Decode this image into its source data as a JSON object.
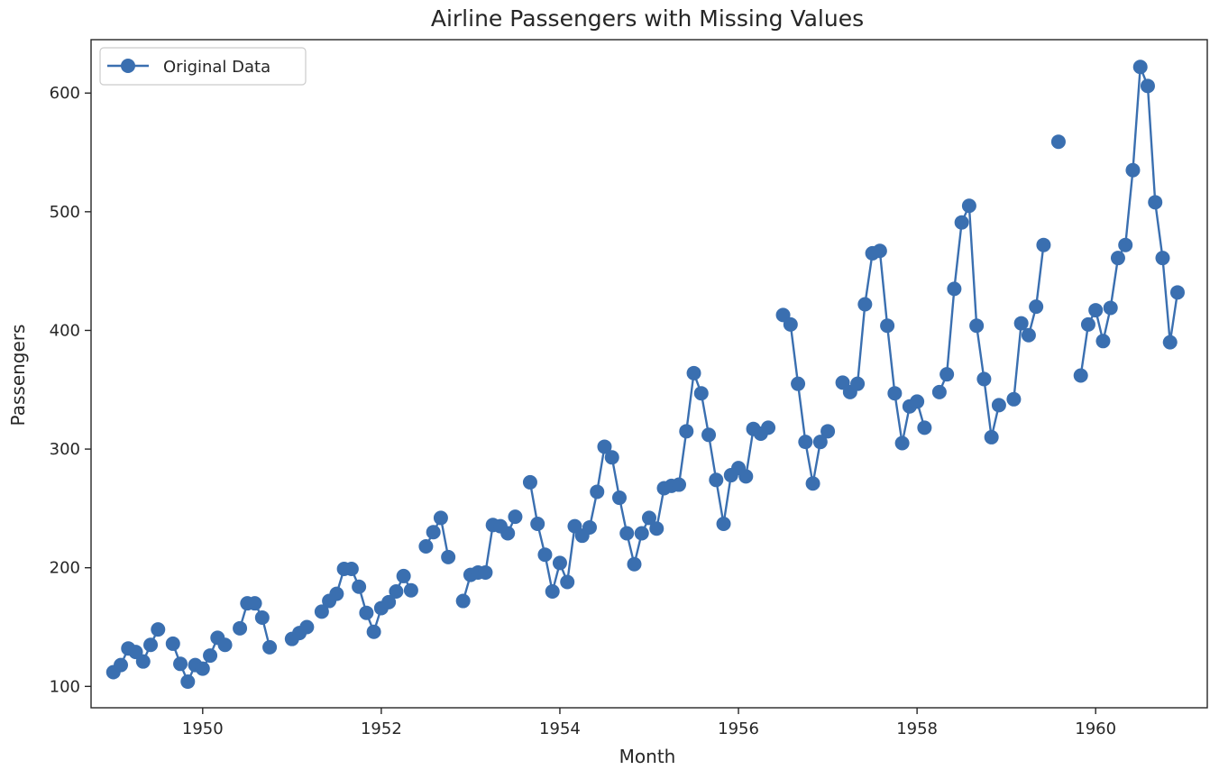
{
  "chart_data": {
    "type": "line",
    "title": "Airline Passengers with Missing Values",
    "xlabel": "Month",
    "ylabel": "Passengers",
    "xlim": [
      1948.75,
      1961.25
    ],
    "ylim": [
      82,
      645
    ],
    "x_ticks": [
      1950,
      1952,
      1954,
      1956,
      1958,
      1960
    ],
    "x_tick_labels": [
      "1950",
      "1952",
      "1954",
      "1956",
      "1958",
      "1960"
    ],
    "y_ticks": [
      100,
      200,
      300,
      400,
      500,
      600
    ],
    "y_tick_labels": [
      "100",
      "200",
      "300",
      "400",
      "500",
      "600"
    ],
    "grid": false,
    "legend_position": "top-left",
    "x_start": "1949-01",
    "series": [
      {
        "name": "Original Data",
        "color": "#3a6fb0",
        "marker": "circle",
        "values": [
          112,
          118,
          132,
          129,
          121,
          135,
          148,
          null,
          136,
          119,
          104,
          118,
          115,
          126,
          141,
          135,
          null,
          149,
          170,
          170,
          158,
          133,
          null,
          null,
          140,
          145,
          150,
          null,
          163,
          172,
          178,
          199,
          199,
          184,
          162,
          146,
          166,
          171,
          180,
          193,
          181,
          null,
          218,
          230,
          242,
          209,
          null,
          172,
          194,
          196,
          196,
          236,
          235,
          229,
          243,
          null,
          272,
          237,
          211,
          180,
          204,
          188,
          235,
          227,
          234,
          264,
          302,
          293,
          259,
          229,
          203,
          229,
          242,
          233,
          267,
          269,
          270,
          315,
          364,
          347,
          312,
          274,
          237,
          278,
          284,
          277,
          317,
          313,
          318,
          null,
          413,
          405,
          355,
          306,
          271,
          306,
          315,
          null,
          356,
          348,
          355,
          422,
          465,
          467,
          404,
          347,
          305,
          336,
          340,
          318,
          null,
          348,
          363,
          435,
          491,
          505,
          404,
          359,
          310,
          337,
          null,
          342,
          406,
          396,
          420,
          472,
          null,
          559,
          null,
          null,
          362,
          405,
          417,
          391,
          419,
          461,
          472,
          535,
          622,
          606,
          508,
          461,
          390,
          432
        ]
      }
    ]
  }
}
